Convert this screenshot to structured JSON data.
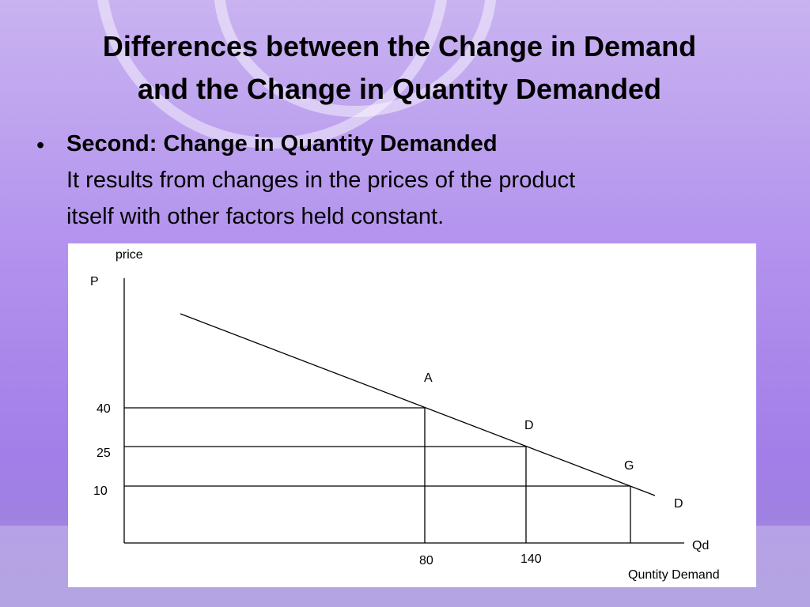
{
  "title": [
    "Differences between the Change in Demand",
    "and the Change in Quantity Demanded"
  ],
  "bullet": {
    "heading": "Second: Change in Quantity Demanded",
    "lines": [
      "It results from changes in the prices of the product",
      "itself with other factors held constant."
    ]
  },
  "figure": {
    "y_axis_label": "price",
    "y_axis_symbol": "P",
    "x_axis_symbol": "Qd",
    "x_axis_label": "Quntity Demand",
    "y_labels": [
      "40",
      "25",
      "10"
    ],
    "x_labels": [
      "80",
      "140"
    ],
    "points": [
      "A",
      "D",
      "G"
    ],
    "curve_label": "D"
  }
}
